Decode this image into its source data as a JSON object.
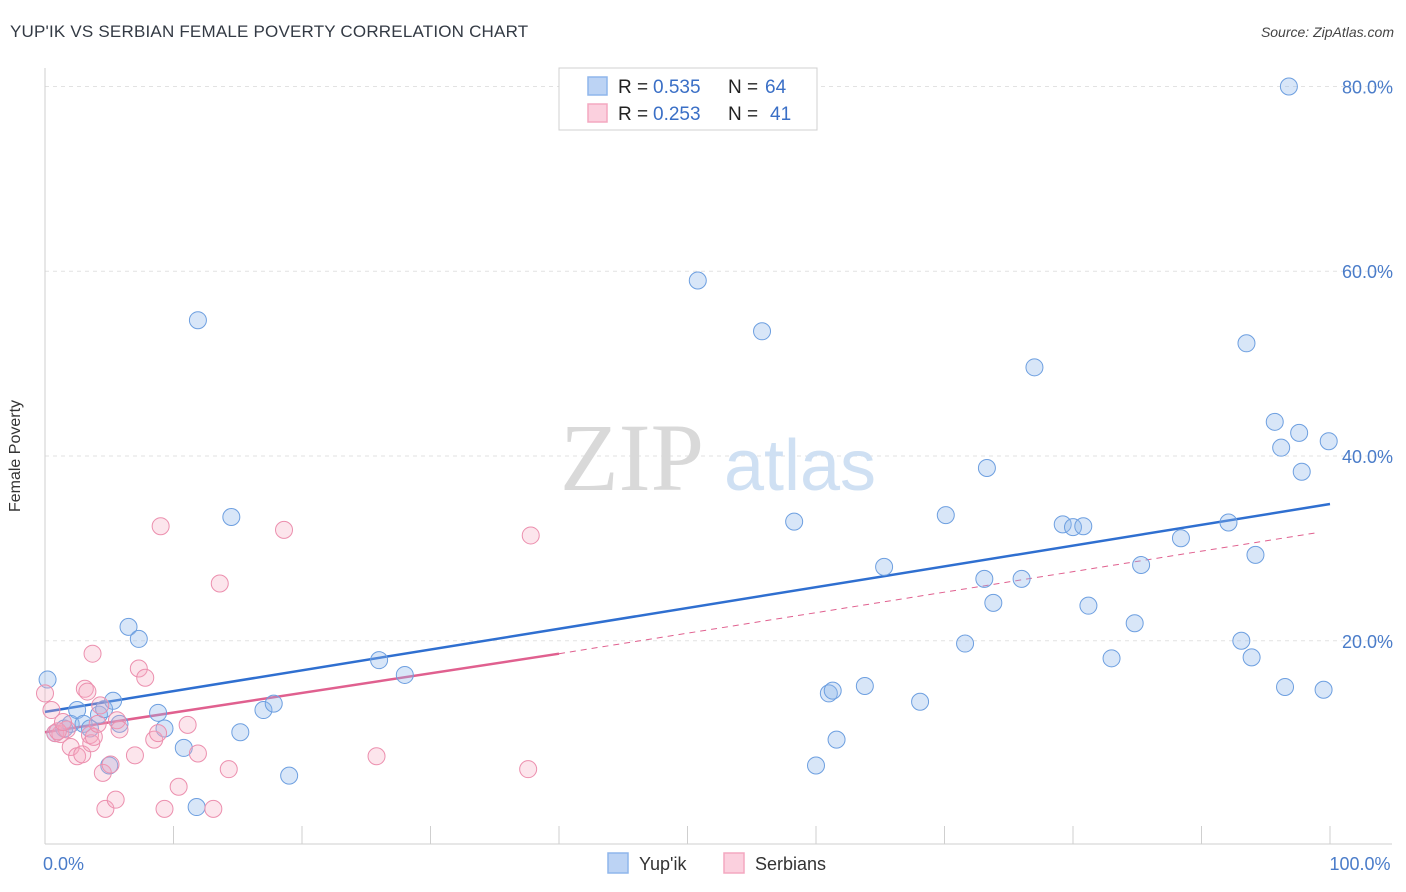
{
  "title": "YUP'IK VS SERBIAN FEMALE POVERTY CORRELATION CHART",
  "source": "Source: ZipAtlas.com",
  "watermark": {
    "zip": "ZIP",
    "atlas": "atlas"
  },
  "colors": {
    "blue": "#8fb6ec",
    "blue_line": "#2f6fd0",
    "pink": "#f4a8c0",
    "pink_line": "#e0608f",
    "tick_text": "#4a7cc9"
  },
  "chart_data": {
    "type": "scatter",
    "xlabel": "",
    "ylabel": "Female Poverty",
    "xlim": [
      0,
      100
    ],
    "ylim": [
      -2,
      82
    ],
    "x_tick_labels": [
      {
        "value": 0,
        "label": "0.0%"
      },
      {
        "value": 100,
        "label": "100.0%"
      }
    ],
    "y_tick_labels": [
      {
        "value": 20,
        "label": "20.0%"
      },
      {
        "value": 40,
        "label": "40.0%"
      },
      {
        "value": 60,
        "label": "60.0%"
      },
      {
        "value": 80,
        "label": "80.0%"
      }
    ],
    "grid": true,
    "legend_position": "top-center",
    "stats": [
      {
        "series": "Yup'ik",
        "r_label": "R =",
        "r_value": "0.535",
        "n_label": "N =",
        "n_value": "64"
      },
      {
        "series": "Serbians",
        "r_label": "R =",
        "r_value": "0.253",
        "n_label": "N =",
        "n_value": "41"
      }
    ],
    "series": [
      {
        "name": "Yup'ik",
        "color": "#8fb6ec",
        "trend": {
          "x0": 0,
          "y0": 12.3,
          "x1": 100,
          "y1": 34.8,
          "style": "solid"
        },
        "points": [
          [
            0.2,
            15.8
          ],
          [
            0.8,
            10
          ],
          [
            1.5,
            10.5
          ],
          [
            2,
            11
          ],
          [
            2.5,
            12.5
          ],
          [
            3,
            11
          ],
          [
            3.5,
            10.5
          ],
          [
            4.2,
            12
          ],
          [
            4.6,
            12.6
          ],
          [
            5,
            6.5
          ],
          [
            5.3,
            13.5
          ],
          [
            5.8,
            11
          ],
          [
            6.5,
            21.5
          ],
          [
            7.3,
            20.2
          ],
          [
            8.8,
            12.2
          ],
          [
            9.3,
            10.5
          ],
          [
            10.8,
            8.4
          ],
          [
            11.8,
            2
          ],
          [
            11.9,
            54.7
          ],
          [
            14.5,
            33.4
          ],
          [
            15.2,
            10.1
          ],
          [
            17,
            12.5
          ],
          [
            17.8,
            13.2
          ],
          [
            19,
            5.4
          ],
          [
            26,
            17.9
          ],
          [
            28,
            16.3
          ],
          [
            50.8,
            59
          ],
          [
            55.8,
            53.5
          ],
          [
            58.3,
            32.9
          ],
          [
            60,
            6.5
          ],
          [
            61,
            14.3
          ],
          [
            61.3,
            14.6
          ],
          [
            61.6,
            9.3
          ],
          [
            63.8,
            15.1
          ],
          [
            65.3,
            28
          ],
          [
            68.1,
            13.4
          ],
          [
            70.1,
            33.6
          ],
          [
            71.6,
            19.7
          ],
          [
            73.3,
            38.7
          ],
          [
            73.1,
            26.7
          ],
          [
            73.8,
            24.1
          ],
          [
            76,
            26.7
          ],
          [
            77,
            49.6
          ],
          [
            79.2,
            32.6
          ],
          [
            80,
            32.3
          ],
          [
            80.8,
            32.4
          ],
          [
            81.2,
            23.8
          ],
          [
            83,
            18.1
          ],
          [
            84.8,
            21.9
          ],
          [
            85.3,
            28.2
          ],
          [
            88.4,
            31.1
          ],
          [
            92.1,
            32.8
          ],
          [
            93.1,
            20.0
          ],
          [
            93.5,
            52.2
          ],
          [
            93.9,
            18.2
          ],
          [
            94.2,
            29.3
          ],
          [
            95.7,
            43.7
          ],
          [
            96.2,
            40.9
          ],
          [
            96.5,
            15
          ],
          [
            96.8,
            80
          ],
          [
            97.6,
            42.5
          ],
          [
            97.8,
            38.3
          ],
          [
            99.5,
            14.7
          ],
          [
            99.9,
            41.6
          ]
        ]
      },
      {
        "name": "Serbians",
        "color": "#f4a8c0",
        "trend": {
          "x0": 0,
          "y0": 10.1,
          "x1": 40,
          "y1": 18.6,
          "style": "solid",
          "extend_to": {
            "x": 99,
            "y": 31.7
          }
        },
        "points": [
          [
            0,
            14.3
          ],
          [
            0.5,
            12.5
          ],
          [
            0.8,
            10
          ],
          [
            1.2,
            9.9
          ],
          [
            1.7,
            10.4
          ],
          [
            2,
            8.5
          ],
          [
            2.5,
            7.5
          ],
          [
            2.9,
            7.7
          ],
          [
            3.1,
            14.8
          ],
          [
            3.3,
            14.5
          ],
          [
            3.5,
            9.8
          ],
          [
            3.6,
            8.9
          ],
          [
            3.7,
            18.6
          ],
          [
            3.8,
            9.6
          ],
          [
            4.1,
            11
          ],
          [
            4.3,
            13
          ],
          [
            4.5,
            5.7
          ],
          [
            4.7,
            1.8
          ],
          [
            5.1,
            6.6
          ],
          [
            5.5,
            2.8
          ],
          [
            5.6,
            11.4
          ],
          [
            5.8,
            10.4
          ],
          [
            7,
            7.6
          ],
          [
            7.3,
            17
          ],
          [
            7.8,
            16
          ],
          [
            8.5,
            9.3
          ],
          [
            8.8,
            10
          ],
          [
            9,
            32.4
          ],
          [
            9.3,
            1.8
          ],
          [
            10.4,
            4.2
          ],
          [
            11.1,
            10.9
          ],
          [
            11.9,
            7.8
          ],
          [
            13.1,
            1.8
          ],
          [
            13.6,
            26.2
          ],
          [
            14.3,
            6.1
          ],
          [
            18.6,
            32
          ],
          [
            25.8,
            7.5
          ],
          [
            37.6,
            6.1
          ],
          [
            37.8,
            31.4
          ],
          [
            1,
            10.2
          ],
          [
            1.4,
            11.2
          ]
        ]
      }
    ]
  }
}
